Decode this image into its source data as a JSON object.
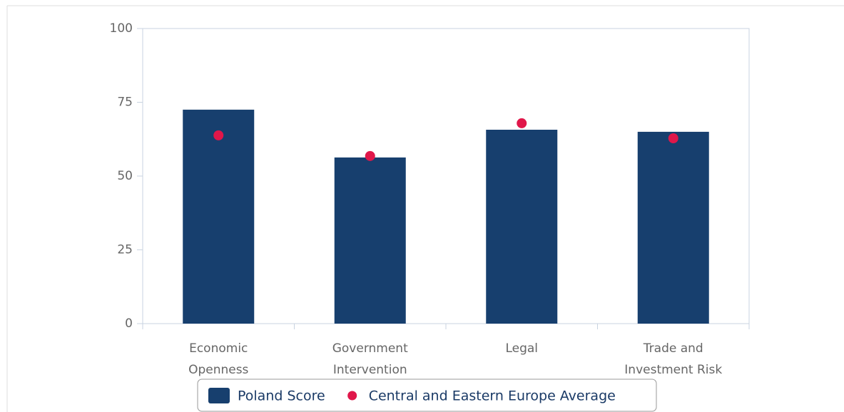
{
  "chart_data": {
    "type": "bar",
    "categories": [
      [
        "Economic",
        "Openness"
      ],
      [
        "Government",
        "Intervention"
      ],
      [
        "Legal"
      ],
      [
        "Trade and",
        "Investment Risk"
      ]
    ],
    "series": [
      {
        "name": "Poland Score",
        "type": "bar",
        "color": "#173f6e",
        "values": [
          72.5,
          56.3,
          65.7,
          65
        ]
      },
      {
        "name": "Central and Eastern Europe Average",
        "type": "scatter",
        "color": "#e0174a",
        "values": [
          63.8,
          56.8,
          67.9,
          62.8
        ]
      }
    ],
    "ylim": [
      0,
      100
    ],
    "yticks": [
      0,
      25,
      50,
      75,
      100
    ],
    "grid": false,
    "legend": "bottom"
  }
}
